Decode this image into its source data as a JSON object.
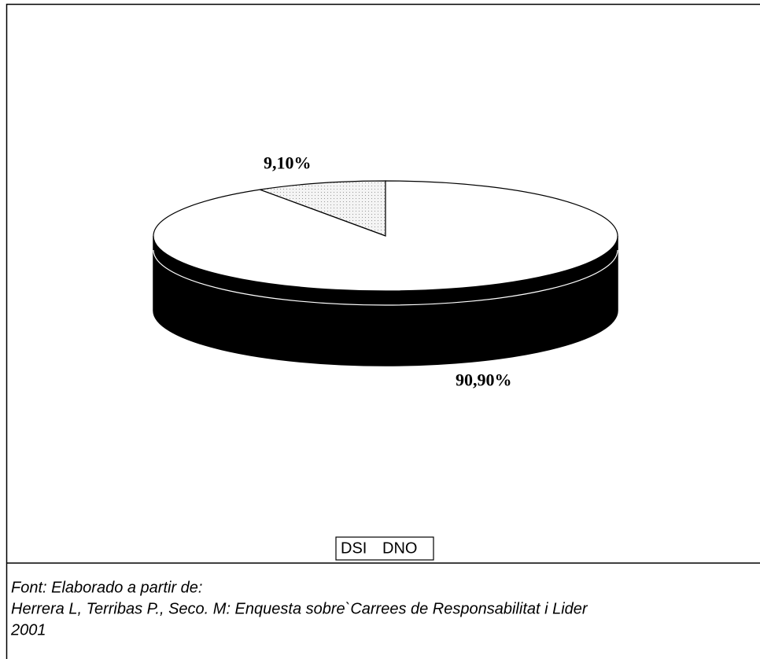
{
  "chart_data": {
    "type": "pie",
    "categories": [
      "DSI",
      "DNO"
    ],
    "values": [
      9.1,
      90.9
    ],
    "value_labels": [
      "9,10%",
      "90,90%"
    ],
    "colors": [
      "#e6e6e6",
      "#ffffff"
    ],
    "side_color": "#000000",
    "source": [
      "Font: Elaborado a partir de:",
      "Herrera L, Terribas P., Seco. M: Enquesta sobre`Carrees de Responsabilitat i Lider",
      "2001"
    ]
  }
}
